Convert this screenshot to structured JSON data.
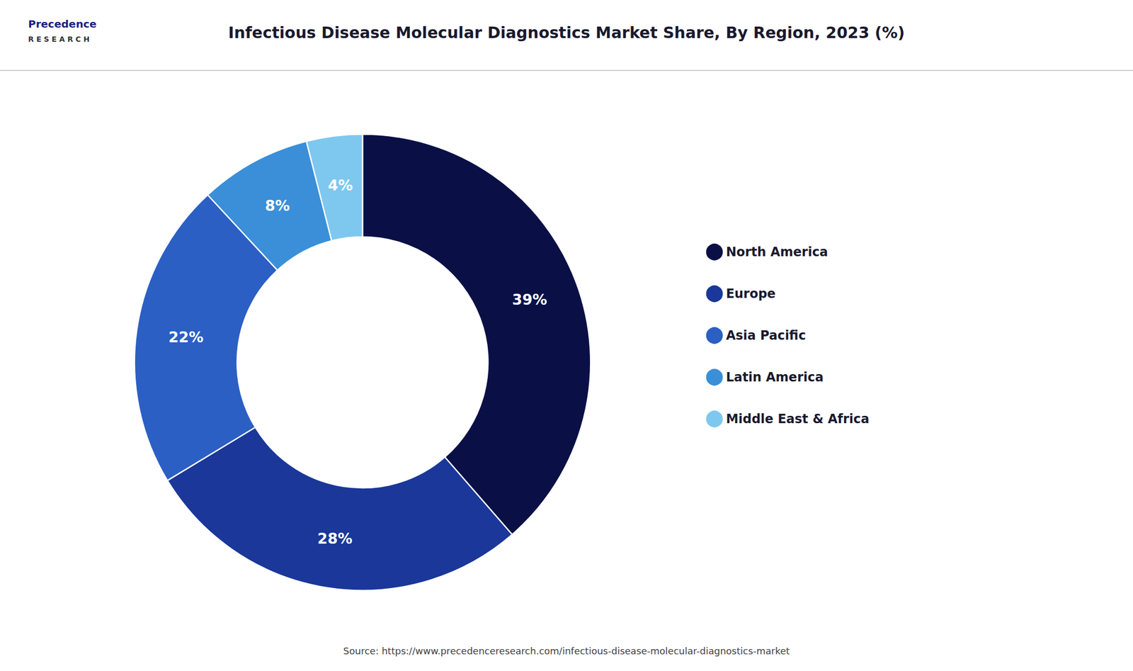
{
  "chart_data": {
    "type": "donut",
    "title": "Infectious Disease Molecular Diagnostics Market Share, By Region, 2023 (%)",
    "categories": [
      "North America",
      "Europe",
      "Asia Pacific",
      "Latin America",
      "Middle East & Africa"
    ],
    "values": [
      39,
      28,
      22,
      8,
      4
    ],
    "value_labels": [
      "39%",
      "28%",
      "22%",
      "8%",
      "4%"
    ],
    "colors": [
      "#0a1045",
      "#1a3799",
      "#2b5fc4",
      "#3a8fd8",
      "#7ec8f0"
    ],
    "data_labels": true,
    "legend": "right",
    "annotations": [
      "Precedence",
      "R E S E A R C H",
      "Source: https://www.precedenceresearch.com/infectious-disease-molecular-diagnostics-market"
    ]
  }
}
